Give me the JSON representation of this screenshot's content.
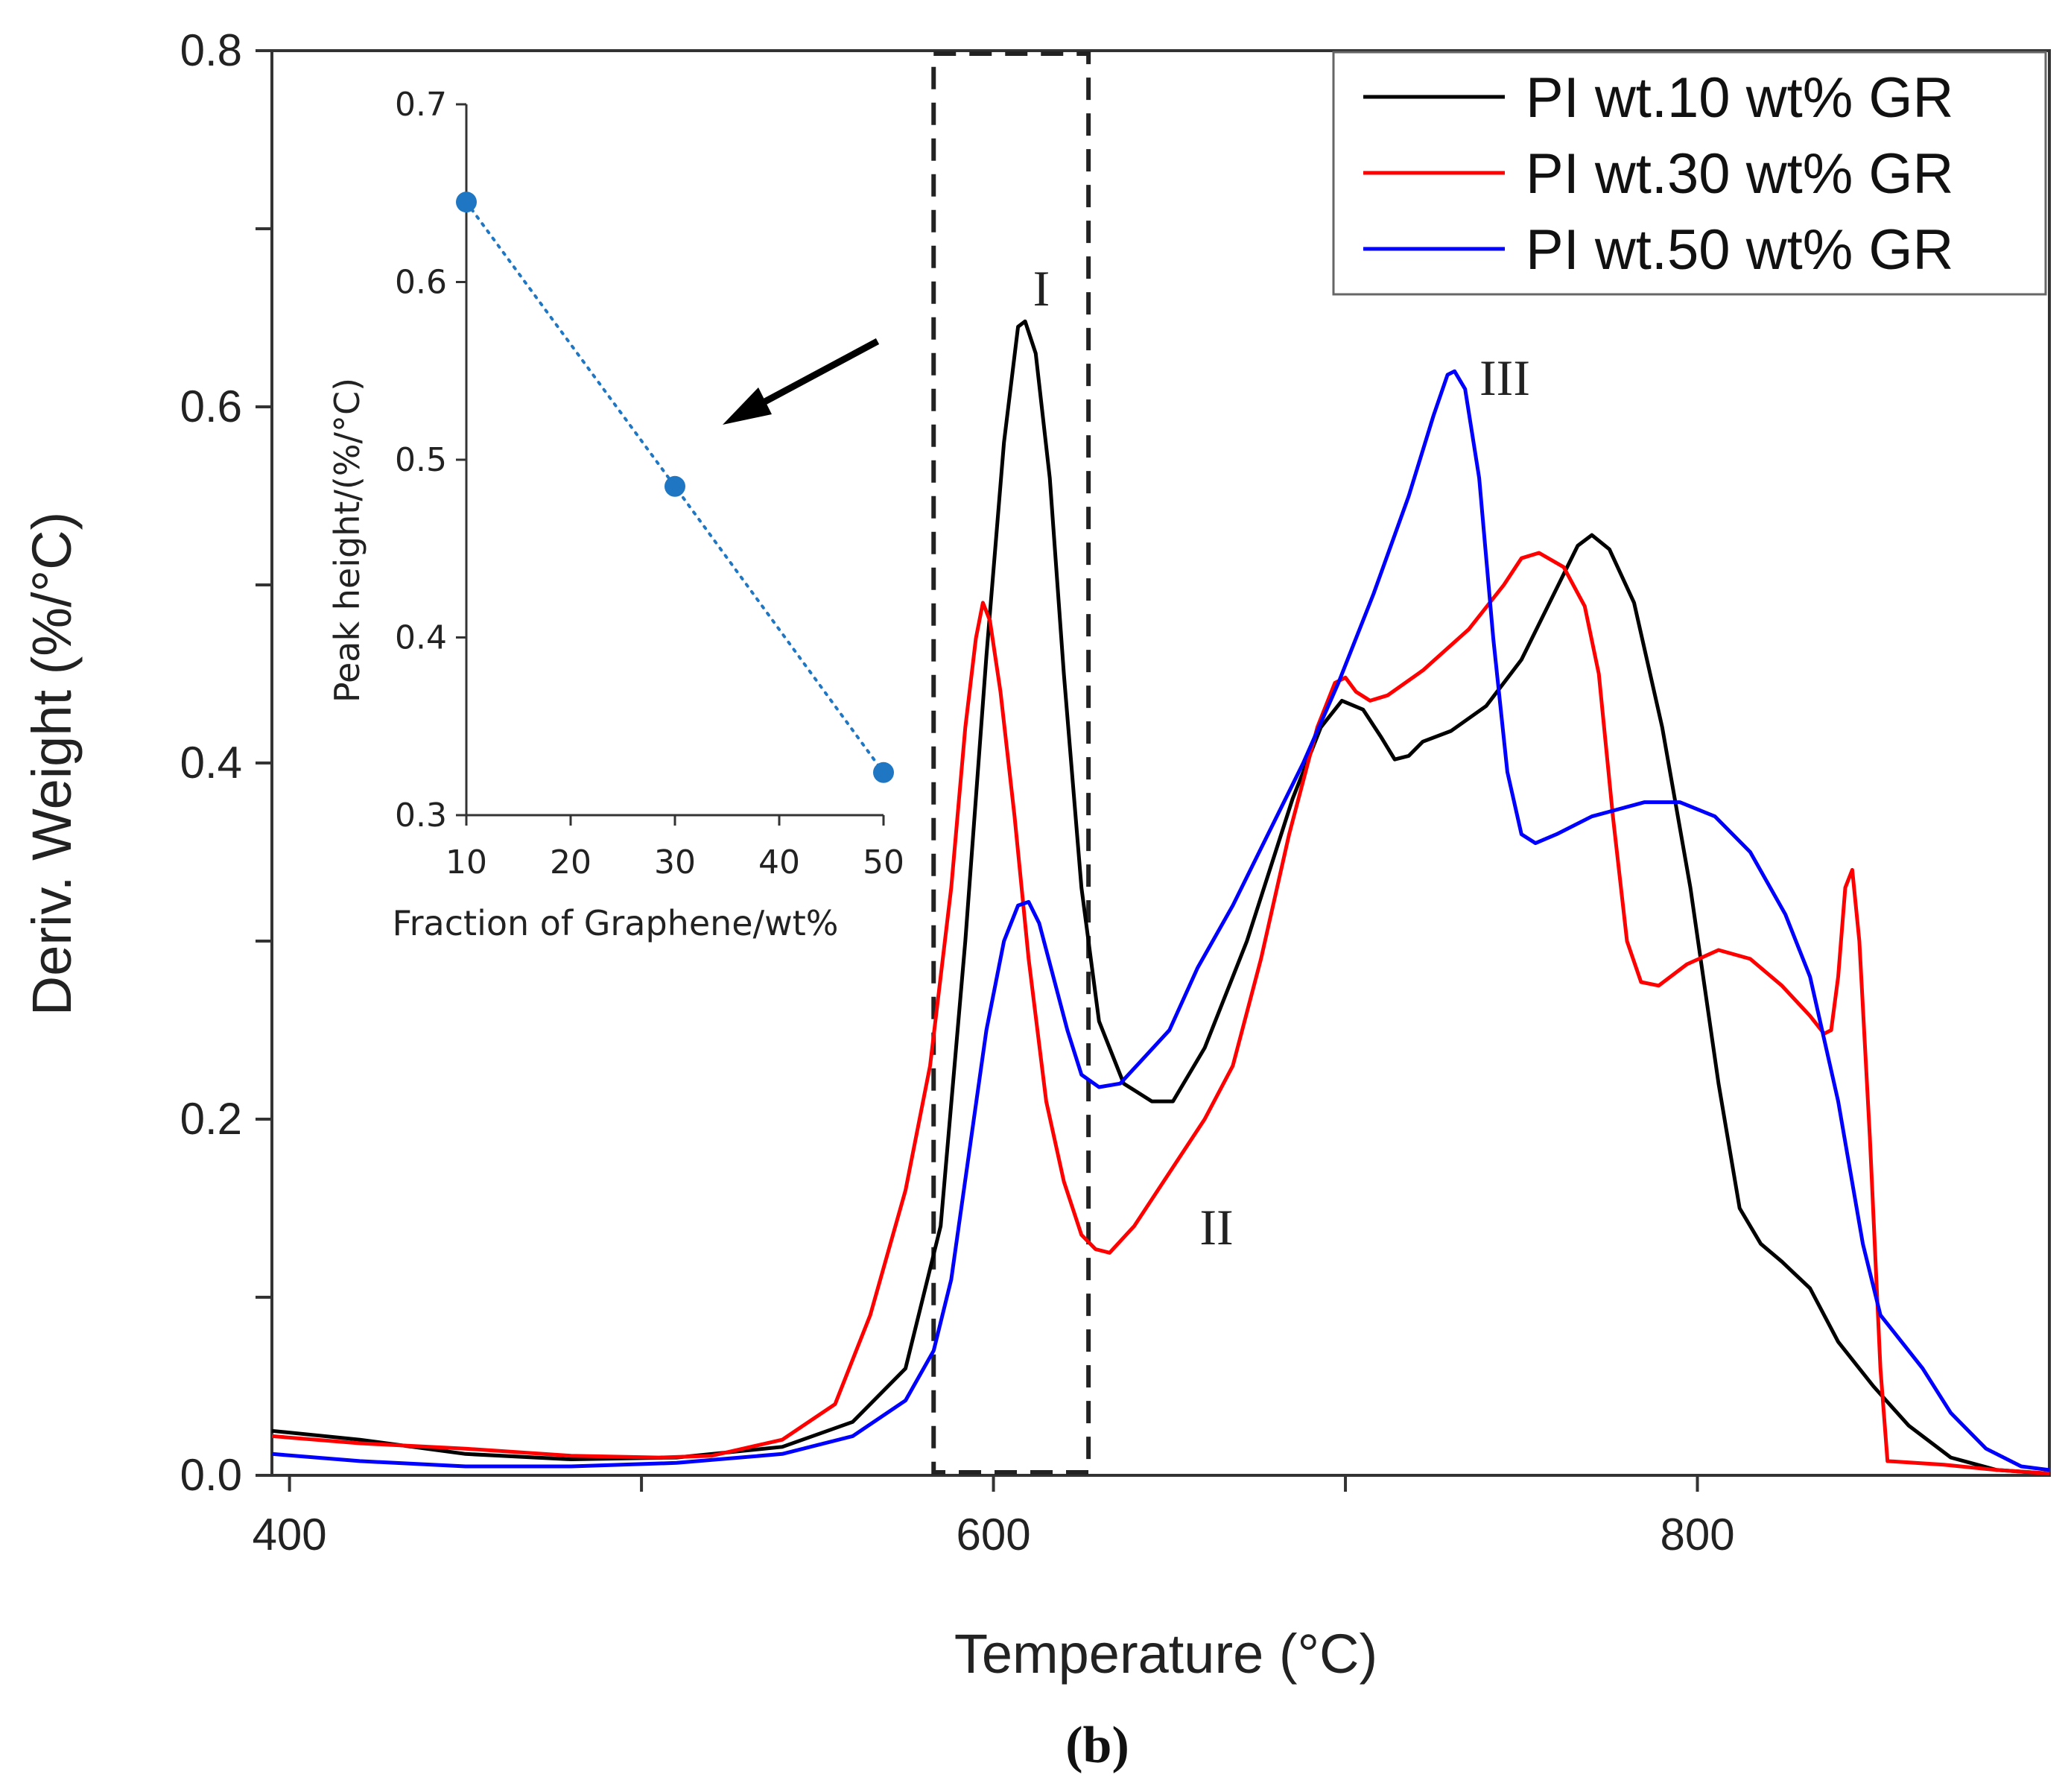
{
  "chart_data": [
    {
      "type": "line",
      "xlabel": "Temperature (°C)",
      "ylabel": "Deriv. Weight (%/°C)",
      "xlim": [
        395,
        900
      ],
      "ylim": [
        0.0,
        0.8
      ],
      "x_ticks": [
        "400",
        "600",
        "800"
      ],
      "y_ticks": [
        "0.0",
        "0.2",
        "0.4",
        "0.6",
        "0.8"
      ],
      "legend_position": "top-right",
      "series": [
        {
          "name": "PI wt.10 wt% GR",
          "color": "#000000",
          "points": [
            [
              395,
              0.025
            ],
            [
              420,
              0.02
            ],
            [
              450,
              0.012
            ],
            [
              480,
              0.009
            ],
            [
              510,
              0.01
            ],
            [
              540,
              0.016
            ],
            [
              560,
              0.03
            ],
            [
              575,
              0.06
            ],
            [
              585,
              0.14
            ],
            [
              592,
              0.3
            ],
            [
              598,
              0.46
            ],
            [
              603,
              0.58
            ],
            [
              607,
              0.645
            ],
            [
              609,
              0.648
            ],
            [
              612,
              0.63
            ],
            [
              616,
              0.56
            ],
            [
              620,
              0.45
            ],
            [
              625,
              0.33
            ],
            [
              630,
              0.255
            ],
            [
              637,
              0.22
            ],
            [
              645,
              0.21
            ],
            [
              651,
              0.21
            ],
            [
              660,
              0.24
            ],
            [
              672,
              0.3
            ],
            [
              685,
              0.38
            ],
            [
              693,
              0.42
            ],
            [
              699,
              0.435
            ],
            [
              705,
              0.43
            ],
            [
              710,
              0.415
            ],
            [
              714,
              0.402
            ],
            [
              718,
              0.404
            ],
            [
              722,
              0.412
            ],
            [
              730,
              0.418
            ],
            [
              740,
              0.432
            ],
            [
              750,
              0.458
            ],
            [
              760,
              0.498
            ],
            [
              766,
              0.522
            ],
            [
              770,
              0.528
            ],
            [
              775,
              0.52
            ],
            [
              782,
              0.49
            ],
            [
              790,
              0.42
            ],
            [
              798,
              0.33
            ],
            [
              806,
              0.22
            ],
            [
              812,
              0.15
            ],
            [
              818,
              0.13
            ],
            [
              824,
              0.12
            ],
            [
              832,
              0.105
            ],
            [
              840,
              0.075
            ],
            [
              850,
              0.05
            ],
            [
              860,
              0.028
            ],
            [
              872,
              0.01
            ],
            [
              885,
              0.003
            ],
            [
              900,
              0.001
            ]
          ]
        },
        {
          "name": "PI wt.30 wt% GR",
          "color": "#ff0000",
          "points": [
            [
              395,
              0.022
            ],
            [
              420,
              0.018
            ],
            [
              450,
              0.015
            ],
            [
              480,
              0.011
            ],
            [
              505,
              0.01
            ],
            [
              520,
              0.011
            ],
            [
              540,
              0.02
            ],
            [
              555,
              0.04
            ],
            [
              565,
              0.09
            ],
            [
              575,
              0.16
            ],
            [
              582,
              0.23
            ],
            [
              588,
              0.33
            ],
            [
              592,
              0.42
            ],
            [
              595,
              0.47
            ],
            [
              597,
              0.49
            ],
            [
              599,
              0.48
            ],
            [
              602,
              0.44
            ],
            [
              606,
              0.37
            ],
            [
              610,
              0.29
            ],
            [
              615,
              0.21
            ],
            [
              620,
              0.165
            ],
            [
              625,
              0.135
            ],
            [
              629,
              0.127
            ],
            [
              633,
              0.125
            ],
            [
              640,
              0.14
            ],
            [
              650,
              0.17
            ],
            [
              660,
              0.2
            ],
            [
              668,
              0.23
            ],
            [
              676,
              0.29
            ],
            [
              684,
              0.36
            ],
            [
              692,
              0.42
            ],
            [
              697,
              0.445
            ],
            [
              700,
              0.448
            ],
            [
              703,
              0.44
            ],
            [
              707,
              0.435
            ],
            [
              712,
              0.438
            ],
            [
              722,
              0.452
            ],
            [
              735,
              0.475
            ],
            [
              745,
              0.5
            ],
            [
              750,
              0.515
            ],
            [
              755,
              0.518
            ],
            [
              762,
              0.51
            ],
            [
              768,
              0.488
            ],
            [
              772,
              0.45
            ],
            [
              776,
              0.37
            ],
            [
              780,
              0.3
            ],
            [
              784,
              0.277
            ],
            [
              789,
              0.275
            ],
            [
              797,
              0.287
            ],
            [
              806,
              0.295
            ],
            [
              815,
              0.29
            ],
            [
              824,
              0.275
            ],
            [
              832,
              0.258
            ],
            [
              836,
              0.248
            ],
            [
              838,
              0.25
            ],
            [
              840,
              0.28
            ],
            [
              842,
              0.33
            ],
            [
              844,
              0.34
            ],
            [
              846,
              0.3
            ],
            [
              849,
              0.19
            ],
            [
              852,
              0.06
            ],
            [
              854,
              0.008
            ],
            [
              870,
              0.006
            ],
            [
              885,
              0.003
            ],
            [
              900,
              0.001
            ]
          ]
        },
        {
          "name": "PI wt.50 wt% GR",
          "color": "#0000ff",
          "points": [
            [
              395,
              0.012
            ],
            [
              420,
              0.008
            ],
            [
              450,
              0.005
            ],
            [
              480,
              0.005
            ],
            [
              510,
              0.007
            ],
            [
              540,
              0.012
            ],
            [
              560,
              0.022
            ],
            [
              575,
              0.042
            ],
            [
              583,
              0.07
            ],
            [
              588,
              0.11
            ],
            [
              593,
              0.18
            ],
            [
              598,
              0.25
            ],
            [
              603,
              0.3
            ],
            [
              607,
              0.32
            ],
            [
              610,
              0.322
            ],
            [
              613,
              0.31
            ],
            [
              617,
              0.28
            ],
            [
              621,
              0.25
            ],
            [
              625,
              0.225
            ],
            [
              630,
              0.218
            ],
            [
              636,
              0.22
            ],
            [
              643,
              0.235
            ],
            [
              650,
              0.25
            ],
            [
              658,
              0.285
            ],
            [
              668,
              0.32
            ],
            [
              678,
              0.36
            ],
            [
              688,
              0.4
            ],
            [
              698,
              0.445
            ],
            [
              708,
              0.495
            ],
            [
              718,
              0.55
            ],
            [
              725,
              0.595
            ],
            [
              729,
              0.618
            ],
            [
              731,
              0.62
            ],
            [
              734,
              0.61
            ],
            [
              738,
              0.56
            ],
            [
              742,
              0.47
            ],
            [
              746,
              0.395
            ],
            [
              750,
              0.36
            ],
            [
              754,
              0.355
            ],
            [
              760,
              0.36
            ],
            [
              770,
              0.37
            ],
            [
              785,
              0.378
            ],
            [
              795,
              0.378
            ],
            [
              805,
              0.37
            ],
            [
              815,
              0.35
            ],
            [
              825,
              0.315
            ],
            [
              832,
              0.28
            ],
            [
              840,
              0.21
            ],
            [
              847,
              0.13
            ],
            [
              852,
              0.09
            ],
            [
              858,
              0.075
            ],
            [
              864,
              0.06
            ],
            [
              872,
              0.035
            ],
            [
              882,
              0.015
            ],
            [
              892,
              0.005
            ],
            [
              900,
              0.003
            ]
          ]
        }
      ],
      "annotations": [
        {
          "text": "I",
          "x": 609,
          "y": 0.665
        },
        {
          "text": "II",
          "x": 660,
          "y": 0.135
        },
        {
          "text": "III",
          "x": 740,
          "y": 0.615
        }
      ],
      "highlight_region": {
        "x_from": 583,
        "x_to": 627
      }
    },
    {
      "type": "scatter",
      "xlabel": "Fraction of Graphene/wt%",
      "ylabel": "Peak height/(%/°C)",
      "xlim": [
        10,
        50
      ],
      "ylim": [
        0.3,
        0.7
      ],
      "x_ticks": [
        "10",
        "20",
        "30",
        "40",
        "50"
      ],
      "y_ticks": [
        "0.3",
        "0.4",
        "0.5",
        "0.6",
        "0.7"
      ],
      "color": "#1f77c4",
      "x": [
        10,
        30,
        50
      ],
      "y": [
        0.645,
        0.485,
        0.324
      ]
    }
  ],
  "panel_label": "(b)"
}
